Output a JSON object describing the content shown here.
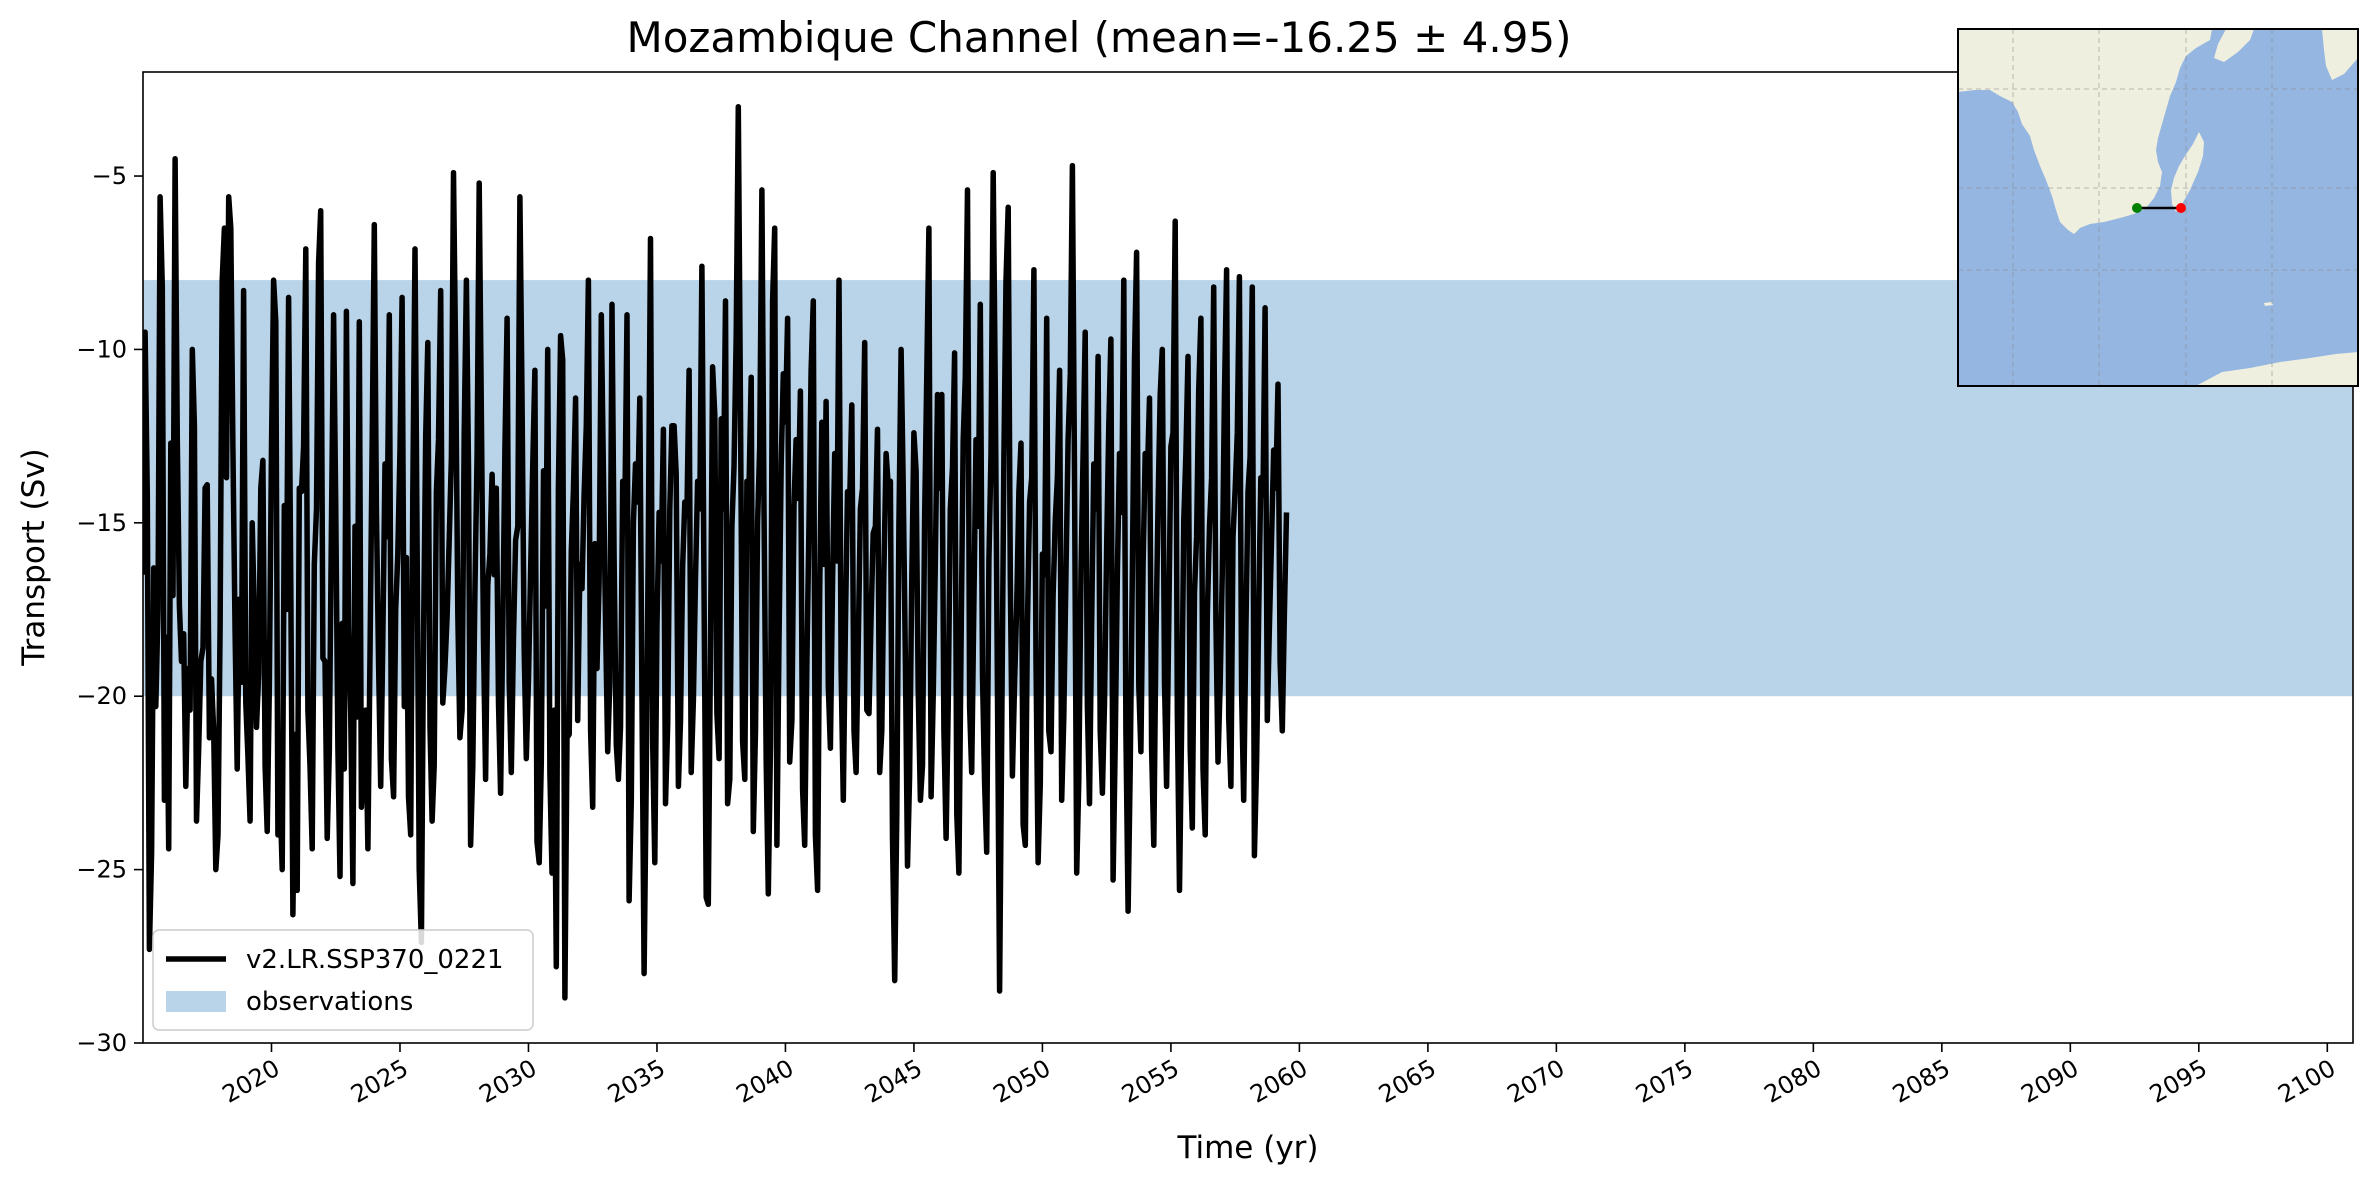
{
  "chart_data": {
    "type": "line",
    "title": "Mozambique Channel (mean=-16.25 ± 4.95)",
    "xlabel": "Time (yr)",
    "ylabel": "Transport (Sv)",
    "xlim": [
      2015,
      2101
    ],
    "ylim": [
      -30,
      -2
    ],
    "x_ticks": [
      2020,
      2025,
      2030,
      2035,
      2040,
      2045,
      2050,
      2055,
      2060,
      2065,
      2070,
      2075,
      2080,
      2085,
      2090,
      2095,
      2100
    ],
    "y_ticks": [
      -30,
      -25,
      -20,
      -15,
      -10,
      -5
    ],
    "grid": false,
    "legend_position": "lower-left",
    "observations_band": {
      "label": "observations",
      "y_min": -20,
      "y_max": -8,
      "color": "#b9d4e9"
    },
    "series": [
      {
        "name": "v2.LR.SSP370_0221",
        "color": "#000000",
        "start_year": 2015,
        "step_years": 0.0833333,
        "values": [
          -16.5,
          -9.5,
          -14.2,
          -27.3,
          -24.5,
          -16.3,
          -20.3,
          -17.5,
          -5.6,
          -8.2,
          -23.0,
          -18.3,
          -24.4,
          -12.7,
          -17.1,
          -4.5,
          -12.6,
          -17.4,
          -19.0,
          -18.2,
          -22.6,
          -19.2,
          -20.4,
          -10.0,
          -12.2,
          -23.6,
          -21.5,
          -19.0,
          -18.6,
          -14.0,
          -13.9,
          -21.2,
          -19.5,
          -21.0,
          -25.0,
          -24.0,
          -18.0,
          -8.0,
          -6.5,
          -13.7,
          -5.6,
          -6.5,
          -12.8,
          -18.2,
          -22.1,
          -17.2,
          -19.6,
          -8.3,
          -20.2,
          -21.7,
          -23.6,
          -15.0,
          -17.7,
          -20.9,
          -19.4,
          -14.0,
          -13.2,
          -22.0,
          -23.9,
          -19.8,
          -12.8,
          -8.0,
          -9.2,
          -24.0,
          -22.9,
          -25.0,
          -14.5,
          -17.5,
          -8.5,
          -16.8,
          -26.3,
          -21.1,
          -25.6,
          -14.0,
          -14.1,
          -12.8,
          -7.1,
          -20.4,
          -22.0,
          -24.4,
          -16.2,
          -14.6,
          -7.5,
          -6.0,
          -18.9,
          -19.0,
          -24.1,
          -21.6,
          -15.2,
          -9.0,
          -14.4,
          -21.5,
          -25.2,
          -17.9,
          -22.1,
          -8.9,
          -18.0,
          -20.5,
          -25.4,
          -15.1,
          -20.6,
          -9.2,
          -23.2,
          -22.0,
          -20.4,
          -24.4,
          -18.8,
          -12.9,
          -6.4,
          -14.6,
          -19.1,
          -22.6,
          -18.4,
          -13.3,
          -15.4,
          -9.0,
          -21.8,
          -22.9,
          -17.5,
          -15.9,
          -12.9,
          -8.5,
          -20.3,
          -16.0,
          -22.9,
          -24.0,
          -14.2,
          -7.1,
          -15.6,
          -25.0,
          -27.1,
          -18.4,
          -12.5,
          -9.8,
          -20.9,
          -23.6,
          -22.0,
          -14.1,
          -12.6,
          -8.3,
          -20.2,
          -19.2,
          -17.7,
          -15.5,
          -13.1,
          -4.9,
          -10.4,
          -17.6,
          -21.2,
          -20.4,
          -12.4,
          -8.0,
          -13.4,
          -24.3,
          -22.0,
          -17.0,
          -13.0,
          -5.2,
          -12.0,
          -18.4,
          -22.4,
          -16.8,
          -15.9,
          -13.6,
          -16.5,
          -14.0,
          -20.2,
          -22.8,
          -18.0,
          -12.9,
          -9.1,
          -19.6,
          -22.2,
          -18.3,
          -15.5,
          -15.1,
          -5.6,
          -11.3,
          -18.7,
          -21.8,
          -19.5,
          -16.4,
          -13.4,
          -10.6,
          -24.2,
          -24.8,
          -21.9,
          -13.5,
          -17.4,
          -10.0,
          -22.2,
          -25.1,
          -20.4,
          -27.8,
          -14.0,
          -9.6,
          -10.3,
          -28.7,
          -21.2,
          -21.1,
          -15.8,
          -14.1,
          -11.4,
          -20.7,
          -16.2,
          -16.9,
          -14.2,
          -12.2,
          -8.0,
          -21.0,
          -23.2,
          -15.6,
          -19.2,
          -16.7,
          -9.0,
          -13.5,
          -18.0,
          -21.6,
          -19.6,
          -8.7,
          -16.0,
          -21.4,
          -22.4,
          -20.9,
          -13.8,
          -14.8,
          -9.0,
          -25.9,
          -23.0,
          -15.0,
          -13.3,
          -14.4,
          -11.4,
          -20.2,
          -28.0,
          -22.5,
          -15.2,
          -6.8,
          -21.4,
          -24.8,
          -17.9,
          -14.7,
          -16.1,
          -12.3,
          -23.1,
          -20.8,
          -14.6,
          -12.2,
          -12.2,
          -13.6,
          -22.6,
          -20.7,
          -16.2,
          -14.4,
          -14.8,
          -10.6,
          -22.2,
          -20.1,
          -16.6,
          -13.8,
          -14.6,
          -7.6,
          -17.2,
          -25.8,
          -26.0,
          -18.6,
          -10.5,
          -11.9,
          -20.5,
          -21.8,
          -12.0,
          -14.6,
          -8.6,
          -23.1,
          -22.4,
          -15.1,
          -13.4,
          -9.6,
          -3.0,
          -11.8,
          -21.3,
          -22.4,
          -13.8,
          -14.0,
          -10.8,
          -23.9,
          -21.0,
          -15.0,
          -12.8,
          -5.4,
          -14.6,
          -21.9,
          -25.7,
          -21.4,
          -8.6,
          -6.5,
          -24.3,
          -18.4,
          -13.3,
          -10.7,
          -12.1,
          -9.1,
          -21.9,
          -20.7,
          -14.5,
          -12.6,
          -14.3,
          -11.2,
          -22.7,
          -24.3,
          -19.0,
          -15.0,
          -10.6,
          -8.6,
          -24.0,
          -25.6,
          -17.0,
          -12.1,
          -16.2,
          -11.5,
          -19.7,
          -21.5,
          -16.6,
          -13.0,
          -16.1,
          -8.0,
          -19.2,
          -23.0,
          -18.0,
          -14.1,
          -14.4,
          -11.6,
          -21.0,
          -22.2,
          -18.4,
          -14.6,
          -14.0,
          -9.8,
          -20.4,
          -20.5,
          -17.7,
          -15.3,
          -15.1,
          -12.3,
          -22.2,
          -21.0,
          -16.4,
          -13.0,
          -13.9,
          -13.8,
          -24.1,
          -28.2,
          -23.4,
          -15.1,
          -10.0,
          -13.9,
          -19.0,
          -24.9,
          -22.3,
          -16.6,
          -12.4,
          -13.5,
          -19.8,
          -23.0,
          -22.0,
          -14.9,
          -10.7,
          -6.5,
          -22.9,
          -20.0,
          -16.2,
          -11.3,
          -14.0,
          -11.3,
          -21.0,
          -24.1,
          -20.3,
          -14.6,
          -13.4,
          -10.1,
          -23.4,
          -25.1,
          -18.7,
          -12.6,
          -10.8,
          -5.4,
          -20.3,
          -22.2,
          -17.3,
          -12.6,
          -15.1,
          -8.7,
          -19.4,
          -22.5,
          -24.5,
          -16.1,
          -13.0,
          -4.9,
          -11.2,
          -19.6,
          -28.5,
          -21.1,
          -13.1,
          -8.0,
          -5.9,
          -16.6,
          -22.3,
          -19.6,
          -17.4,
          -14.1,
          -12.7,
          -23.7,
          -24.3,
          -18.0,
          -14.4,
          -13.7,
          -7.7,
          -19.0,
          -24.8,
          -22.5,
          -15.9,
          -16.5,
          -9.1,
          -21.0,
          -21.6,
          -17.1,
          -14.9,
          -13.7,
          -10.6,
          -23.0,
          -20.6,
          -16.4,
          -12.6,
          -10.7,
          -4.7,
          -13.6,
          -25.1,
          -22.4,
          -16.4,
          -13.0,
          -9.5,
          -20.3,
          -23.1,
          -17.8,
          -13.3,
          -14.6,
          -10.2,
          -21.0,
          -22.8,
          -20.2,
          -15.6,
          -12.2,
          -9.7,
          -25.3,
          -21.4,
          -16.4,
          -13.0,
          -14.7,
          -8.0,
          -21.0,
          -26.2,
          -22.1,
          -16.3,
          -10.3,
          -7.2,
          -19.7,
          -21.6,
          -16.2,
          -13.0,
          -13.6,
          -11.4,
          -21.5,
          -24.3,
          -18.4,
          -14.4,
          -11.3,
          -10.0,
          -19.6,
          -22.6,
          -17.8,
          -12.8,
          -12.4,
          -6.3,
          -20.4,
          -25.6,
          -20.9,
          -14.9,
          -13.0,
          -10.2,
          -21.5,
          -23.8,
          -17.0,
          -15.4,
          -11.2,
          -9.1,
          -22.1,
          -24.0,
          -17.7,
          -15.1,
          -13.7,
          -8.2,
          -17.8,
          -21.9,
          -19.6,
          -16.4,
          -11.4,
          -7.7,
          -20.6,
          -22.6,
          -15.4,
          -14.0,
          -12.4,
          -7.9,
          -19.9,
          -23.0,
          -18.1,
          -14.1,
          -13.1,
          -8.2,
          -24.6,
          -21.9,
          -17.6,
          -13.7,
          -14.2,
          -8.8,
          -20.7,
          -18.0,
          -15.4,
          -12.9,
          -14.0,
          -11.0,
          -19.0,
          -21.0,
          -17.6,
          -14.7
        ]
      }
    ]
  },
  "inset_map": {
    "ocean_color": "#96b6e2",
    "land_color": "#efefdf",
    "transect_start_color": "#008000",
    "transect_end_color": "#ff0000"
  }
}
